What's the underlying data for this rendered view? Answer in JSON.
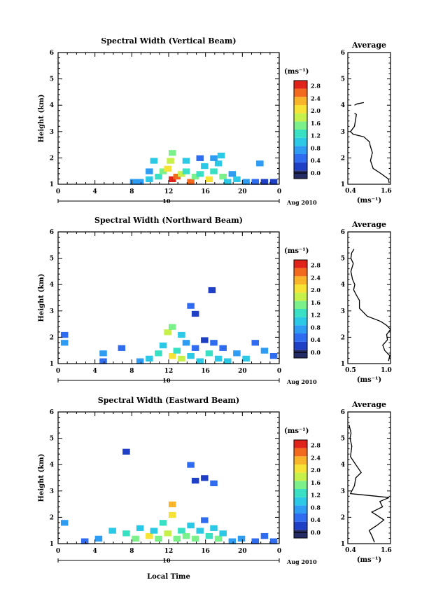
{
  "xlabel_bottom": "Local Time",
  "date_label": "Aug 2010",
  "day_label": "10",
  "units_label": "(ms⁻¹)",
  "avg_title": "Average",
  "colorbar_ticks": [
    "0.0",
    "0.4",
    "0.8",
    "1.2",
    "1.6",
    "2.0",
    "2.4",
    "2.8"
  ],
  "x_ticks": [
    "0",
    "4",
    "8",
    "12",
    "16",
    "20",
    "0"
  ],
  "y_ticks": [
    "1",
    "2",
    "3",
    "4",
    "5",
    "6"
  ],
  "colormap": [
    "#242a64",
    "#1f3fc4",
    "#2f6cf0",
    "#2d9cf2",
    "#2cc9e6",
    "#39e0c4",
    "#7cf08a",
    "#c6f04a",
    "#f7e336",
    "#f8b52a",
    "#f26a1e",
    "#e0241c"
  ],
  "chart_data": [
    {
      "type": "heatmap",
      "title": "Spectral Width (Vertical Beam)",
      "xlabel": "",
      "ylabel": "Height (km)",
      "xlim": [
        0,
        24
      ],
      "ylim": [
        1,
        6
      ],
      "clim": [
        0,
        3
      ],
      "cells": [
        [
          7.8,
          1.2,
          0.8
        ],
        [
          8.5,
          1.2,
          0.9
        ],
        [
          9.5,
          1.3,
          1.2
        ],
        [
          10.5,
          1.4,
          1.4
        ],
        [
          11,
          1.6,
          1.5
        ],
        [
          11.5,
          1.7,
          2.0
        ],
        [
          12,
          1.3,
          2.9
        ],
        [
          12.5,
          1.4,
          2.6
        ],
        [
          13,
          1.5,
          1.8
        ],
        [
          13.5,
          1.6,
          1.4
        ],
        [
          14,
          1.2,
          2.6
        ],
        [
          14.5,
          1.4,
          1.6
        ],
        [
          15,
          1.5,
          1.3
        ],
        [
          15.5,
          1.8,
          1.1
        ],
        [
          16,
          1.3,
          2.2
        ],
        [
          16.5,
          1.6,
          1.4
        ],
        [
          17,
          1.9,
          1.0
        ],
        [
          17.5,
          1.4,
          1.6
        ],
        [
          18,
          1.2,
          1.2
        ],
        [
          18.5,
          1.5,
          0.9
        ],
        [
          19,
          1.3,
          1.0
        ],
        [
          20,
          1.2,
          0.8
        ],
        [
          21,
          1.2,
          0.6
        ],
        [
          21.5,
          1.9,
          0.9
        ],
        [
          22,
          1.2,
          0.4
        ],
        [
          23,
          1.2,
          0.3
        ],
        [
          12,
          2.3,
          1.7
        ],
        [
          11.8,
          2.0,
          1.9
        ],
        [
          13.5,
          2.0,
          1.0
        ],
        [
          15,
          2.1,
          0.7
        ],
        [
          16.5,
          2.1,
          0.8
        ],
        [
          17.3,
          2.2,
          1.2
        ],
        [
          10,
          2.0,
          1.1
        ],
        [
          9.5,
          1.6,
          0.9
        ]
      ],
      "average": {
        "xlim": [
          0.2,
          1.8
        ],
        "x_ticks": [
          "0.4",
          "1.6"
        ],
        "profile": [
          [
            1.75,
            1.05
          ],
          [
            1.72,
            1.2
          ],
          [
            1.45,
            1.4
          ],
          [
            1.15,
            1.6
          ],
          [
            1.05,
            1.9
          ],
          [
            1.12,
            2.2
          ],
          [
            1.03,
            2.5
          ],
          [
            1.02,
            2.6
          ],
          [
            0.8,
            2.8
          ],
          [
            0.4,
            2.9
          ],
          [
            0.3,
            3.0
          ],
          [
            0.45,
            3.2
          ],
          [
            0.5,
            3.5
          ],
          [
            0.52,
            3.65
          ],
          [
            0.45,
            3.7
          ]
        ],
        "profile2": [
          [
            0.45,
            4.0
          ],
          [
            0.55,
            4.05
          ],
          [
            0.8,
            4.1
          ]
        ]
      }
    },
    {
      "type": "heatmap",
      "title": "Spectral Width (Northward Beam)",
      "xlabel": "",
      "ylabel": "Height (km)",
      "xlim": [
        0,
        24
      ],
      "ylim": [
        1,
        6
      ],
      "clim": [
        0,
        3
      ],
      "cells": [
        [
          0.3,
          1.9,
          0.8
        ],
        [
          0.3,
          2.2,
          0.5
        ],
        [
          4.5,
          1.5,
          0.8
        ],
        [
          4.5,
          1.2,
          0.6
        ],
        [
          6.5,
          1.7,
          0.7
        ],
        [
          8.5,
          1.2,
          0.9
        ],
        [
          9.5,
          1.3,
          1.1
        ],
        [
          10.5,
          1.5,
          1.3
        ],
        [
          11,
          1.8,
          1.2
        ],
        [
          11.5,
          2.3,
          1.8
        ],
        [
          12,
          1.4,
          2.2
        ],
        [
          12.5,
          1.6,
          1.3
        ],
        [
          13,
          1.3,
          1.8
        ],
        [
          13.5,
          1.9,
          0.8
        ],
        [
          14,
          1.4,
          1.2
        ],
        [
          14.5,
          1.7,
          0.5
        ],
        [
          15,
          1.2,
          1.0
        ],
        [
          15.5,
          2.0,
          0.4
        ],
        [
          16,
          1.5,
          1.4
        ],
        [
          16.5,
          1.9,
          0.5
        ],
        [
          17,
          1.3,
          1.1
        ],
        [
          17.5,
          1.7,
          0.6
        ],
        [
          18,
          1.2,
          1.0
        ],
        [
          19,
          1.5,
          0.8
        ],
        [
          20,
          1.3,
          1.2
        ],
        [
          21,
          1.9,
          0.7
        ],
        [
          22,
          1.6,
          0.9
        ],
        [
          23,
          1.4,
          0.5
        ],
        [
          14,
          3.3,
          0.6
        ],
        [
          16.3,
          3.9,
          0.3
        ],
        [
          14.5,
          3.0,
          0.4
        ],
        [
          12,
          2.5,
          1.7
        ],
        [
          13,
          2.2,
          1.1
        ]
      ],
      "average": {
        "xlim": [
          0.2,
          1.3
        ],
        "x_ticks": [
          "0.5",
          "1.0"
        ],
        "profile": [
          [
            1.25,
            1.1
          ],
          [
            1.28,
            1.3
          ],
          [
            1.15,
            1.5
          ],
          [
            1.1,
            1.7
          ],
          [
            1.22,
            1.9
          ],
          [
            1.2,
            2.1
          ],
          [
            1.3,
            2.3
          ],
          [
            1.2,
            2.45
          ],
          [
            1.05,
            2.6
          ],
          [
            0.7,
            2.8
          ],
          [
            0.5,
            3.1
          ],
          [
            0.5,
            3.4
          ],
          [
            0.42,
            3.6
          ],
          [
            0.35,
            3.8
          ],
          [
            0.38,
            4.0
          ],
          [
            0.32,
            4.2
          ],
          [
            0.28,
            4.5
          ],
          [
            0.34,
            4.8
          ],
          [
            0.28,
            5.0
          ],
          [
            0.3,
            5.2
          ],
          [
            0.36,
            5.35
          ]
        ]
      }
    },
    {
      "type": "heatmap",
      "title": "Spectral Width (Eastward Beam)",
      "xlabel": "Local Time",
      "ylabel": "Height (km)",
      "xlim": [
        0,
        24
      ],
      "ylim": [
        1,
        6
      ],
      "clim": [
        0,
        3
      ],
      "cells": [
        [
          0.3,
          1.9,
          0.9
        ],
        [
          2.5,
          1.2,
          0.7
        ],
        [
          4,
          1.3,
          0.8
        ],
        [
          5.5,
          1.6,
          1.0
        ],
        [
          7,
          1.5,
          1.3
        ],
        [
          8,
          1.3,
          1.5
        ],
        [
          8.5,
          1.7,
          1.1
        ],
        [
          9.5,
          1.4,
          2.0
        ],
        [
          10,
          1.6,
          1.2
        ],
        [
          10.5,
          1.3,
          1.6
        ],
        [
          11,
          1.9,
          1.4
        ],
        [
          11.5,
          1.5,
          1.8
        ],
        [
          12,
          2.2,
          2.2
        ],
        [
          12.5,
          1.3,
          1.6
        ],
        [
          13,
          1.6,
          1.3
        ],
        [
          13.5,
          1.4,
          1.5
        ],
        [
          14,
          1.8,
          1.1
        ],
        [
          14.5,
          1.3,
          1.7
        ],
        [
          15,
          1.6,
          1.2
        ],
        [
          15.5,
          2.0,
          0.6
        ],
        [
          16,
          1.4,
          1.3
        ],
        [
          16.5,
          1.7,
          1.0
        ],
        [
          17,
          1.3,
          1.5
        ],
        [
          17.5,
          1.5,
          1.2
        ],
        [
          18.5,
          1.2,
          0.8
        ],
        [
          19.5,
          1.3,
          0.9
        ],
        [
          21,
          1.2,
          0.7
        ],
        [
          22,
          1.4,
          0.5
        ],
        [
          23,
          1.2,
          0.6
        ],
        [
          7,
          4.6,
          0.3
        ],
        [
          14,
          4.1,
          0.5
        ],
        [
          14.5,
          3.5,
          0.3
        ],
        [
          15.5,
          3.6,
          0.4
        ],
        [
          16.5,
          3.4,
          0.5
        ],
        [
          12,
          2.6,
          2.3
        ]
      ],
      "average": {
        "xlim": [
          0.2,
          1.8
        ],
        "x_ticks": [
          "0.4",
          "1.6"
        ],
        "profile": [
          [
            1.2,
            1.05
          ],
          [
            1.1,
            1.3
          ],
          [
            1.0,
            1.5
          ],
          [
            1.3,
            1.7
          ],
          [
            1.55,
            1.9
          ],
          [
            1.25,
            2.1
          ],
          [
            1.1,
            2.2
          ],
          [
            1.5,
            2.4
          ],
          [
            1.4,
            2.6
          ],
          [
            1.75,
            2.75
          ],
          [
            0.3,
            2.9
          ],
          [
            0.45,
            3.2
          ],
          [
            0.5,
            3.5
          ],
          [
            0.7,
            3.7
          ],
          [
            0.5,
            4.0
          ],
          [
            0.3,
            4.3
          ],
          [
            0.35,
            4.7
          ],
          [
            0.28,
            5.0
          ],
          [
            0.32,
            5.2
          ],
          [
            0.25,
            5.5
          ]
        ]
      }
    }
  ]
}
